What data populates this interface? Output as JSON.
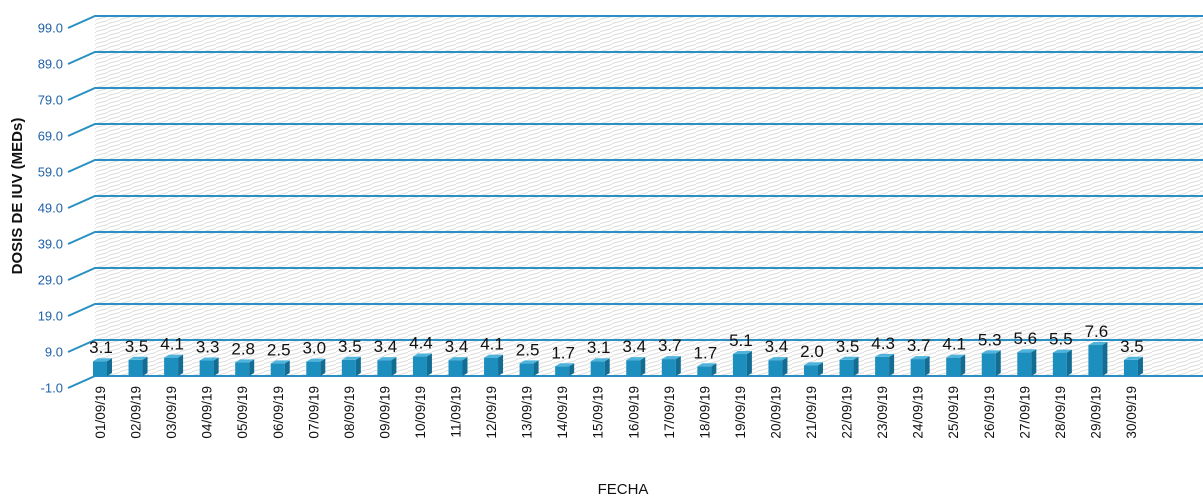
{
  "chart_data": {
    "type": "bar",
    "title": "",
    "xlabel": "FECHA",
    "ylabel": "DOSIS DE IUV (MEDs)",
    "ylim": [
      -1.0,
      99.0
    ],
    "yticks": [
      "-1.0",
      "9.0",
      "19.0",
      "29.0",
      "39.0",
      "49.0",
      "59.0",
      "69.0",
      "79.0",
      "89.0",
      "99.0"
    ],
    "categories": [
      "01/09/19",
      "02/09/19",
      "03/09/19",
      "04/09/19",
      "05/09/19",
      "06/09/19",
      "07/09/19",
      "08/09/19",
      "09/09/19",
      "10/09/19",
      "11/09/19",
      "12/09/19",
      "13/09/19",
      "14/09/19",
      "15/09/19",
      "16/09/19",
      "17/09/19",
      "18/09/19",
      "19/09/19",
      "20/09/19",
      "21/09/19",
      "22/09/19",
      "23/09/19",
      "24/09/19",
      "25/09/19",
      "26/09/19",
      "27/09/19",
      "28/09/19",
      "29/09/19",
      "30/09/19"
    ],
    "values": [
      3.1,
      3.5,
      4.1,
      3.3,
      2.8,
      2.5,
      3.0,
      3.5,
      3.4,
      4.4,
      3.4,
      4.1,
      2.5,
      1.7,
      3.1,
      3.4,
      3.7,
      1.7,
      5.1,
      3.4,
      2.0,
      3.5,
      4.3,
      3.7,
      4.1,
      5.3,
      5.6,
      5.5,
      7.6,
      3.5
    ],
    "data_labels": [
      "3.1",
      "3.5",
      "4.1",
      "3.3",
      "2.8",
      "2.5",
      "3.0",
      "3.5",
      "3.4",
      "4.4",
      "3.4",
      "4.1",
      "2.5",
      "1.7",
      "3.1",
      "3.4",
      "3.7",
      "1.7",
      "5.1",
      "3.4",
      "2.0",
      "3.5",
      "4.3",
      "3.7",
      "4.1",
      "5.3",
      "5.6",
      "5.5",
      "7.6",
      "3.5"
    ],
    "grid": true,
    "legend": "none",
    "colors": {
      "bar_front": "#1c8fbf",
      "bar_side": "#136d93",
      "bar_top": "#4fb4dc",
      "gridline": "#2a8fc2",
      "tick_text": "#1f5fa8"
    }
  }
}
